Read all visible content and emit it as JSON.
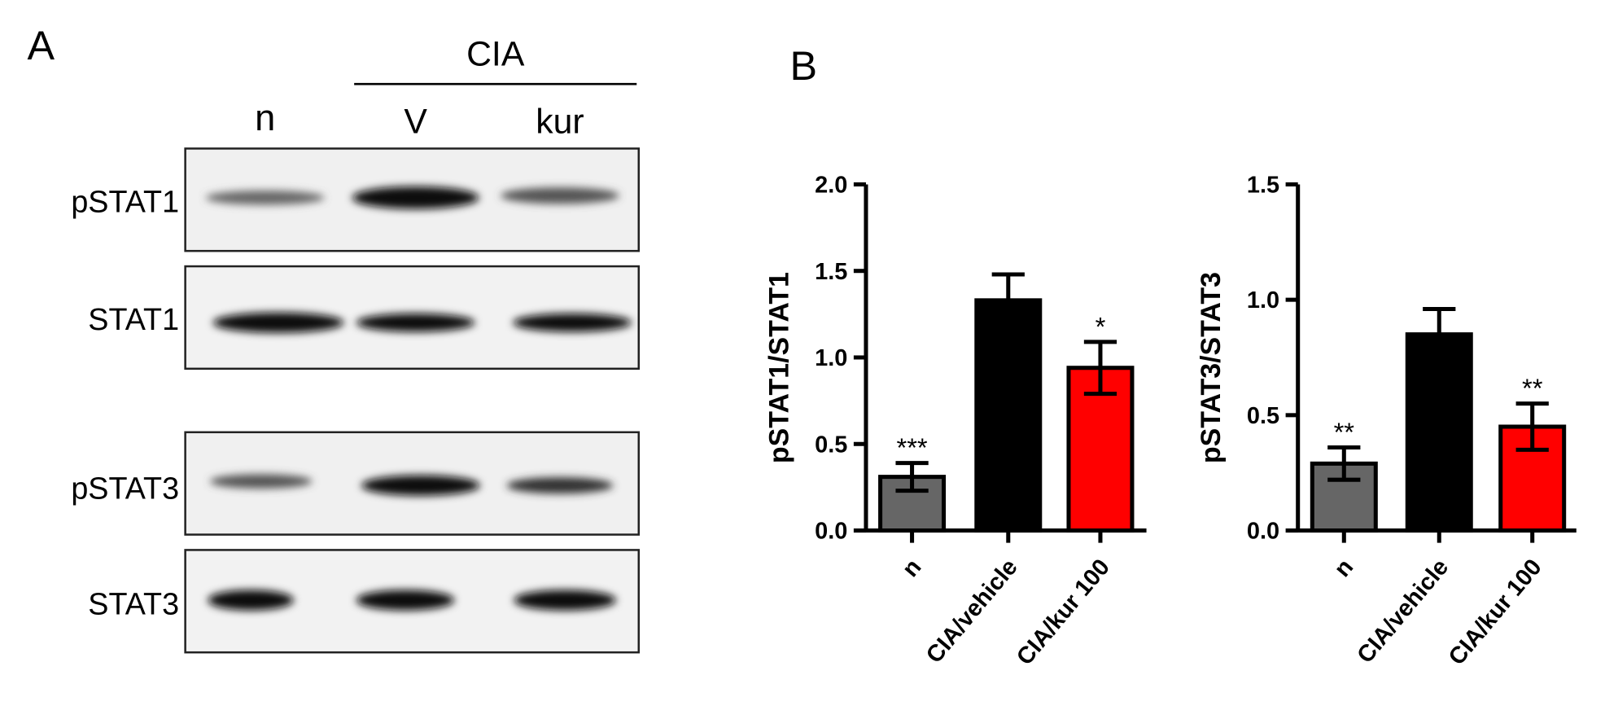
{
  "panel_a": {
    "label": "A",
    "group": "CIA",
    "lanes": [
      "n",
      "V",
      "kur"
    ],
    "rows": [
      "pSTAT1",
      "STAT1",
      "pSTAT3",
      "STAT3"
    ]
  },
  "panel_b_label": "B",
  "chart_data": [
    {
      "type": "bar",
      "ylabel": "pSTAT1/STAT1",
      "categories": [
        "n",
        "CIA/vehicle",
        "CIA/kur 100"
      ],
      "values": [
        0.31,
        1.33,
        0.94
      ],
      "errors": [
        0.08,
        0.15,
        0.15
      ],
      "colors": [
        "#666666",
        "#000000",
        "#ff0000"
      ],
      "significance": [
        "***",
        null,
        "*"
      ],
      "ylim": [
        0,
        2
      ],
      "yticks": [
        {
          "value": 0,
          "label": "0.0"
        },
        {
          "value": 0.5,
          "label": "0.5"
        },
        {
          "value": 1,
          "label": "1.0"
        },
        {
          "value": 1.5,
          "label": "1.5"
        },
        {
          "value": 2,
          "label": "2.0"
        }
      ]
    },
    {
      "type": "bar",
      "ylabel": "pSTAT3/STAT3",
      "categories": [
        "n",
        "CIA/vehicle",
        "CIA/kur 100"
      ],
      "values": [
        0.29,
        0.85,
        0.45
      ],
      "errors": [
        0.07,
        0.11,
        0.1
      ],
      "colors": [
        "#666666",
        "#000000",
        "#ff0000"
      ],
      "significance": [
        "**",
        null,
        "**"
      ],
      "ylim": [
        0,
        1.5
      ],
      "yticks": [
        {
          "value": 0,
          "label": "0.0"
        },
        {
          "value": 0.5,
          "label": "0.5"
        },
        {
          "value": 1,
          "label": "1.0"
        },
        {
          "value": 1.5,
          "label": "1.5"
        }
      ]
    }
  ]
}
